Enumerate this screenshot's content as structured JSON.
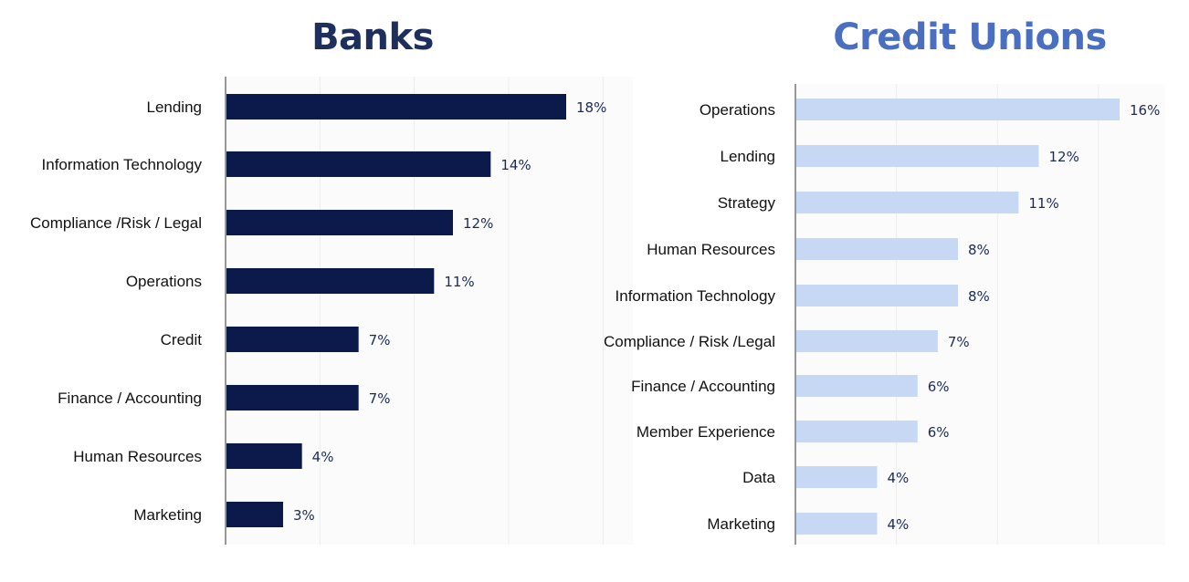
{
  "colors": {
    "banks_title": "#1d2f5c",
    "banks_bar": "#0b1a4b",
    "cu_title": "#4a6fc1",
    "cu_bar": "#c7d8f4",
    "grid": "#ececec",
    "axis": "#555555"
  },
  "chart_data": [
    {
      "type": "bar",
      "orientation": "horizontal",
      "title": "Banks",
      "xlabel": "",
      "ylabel": "",
      "xlim": [
        0,
        20
      ],
      "grid": true,
      "categories": [
        "Lending",
        "Information Technology",
        "Compliance /Risk / Legal",
        "Operations",
        "Credit",
        "Finance / Accounting",
        "Human Resources",
        "Marketing"
      ],
      "values": [
        18,
        14,
        12,
        11,
        7,
        7,
        4,
        3
      ],
      "value_labels": [
        "18%",
        "14%",
        "12%",
        "11%",
        "7%",
        "7%",
        "4%",
        "3%"
      ]
    },
    {
      "type": "bar",
      "orientation": "horizontal",
      "title": "Credit Unions",
      "xlabel": "",
      "ylabel": "",
      "xlim": [
        0,
        20
      ],
      "grid": true,
      "categories": [
        "Operations",
        "Lending",
        "Strategy",
        "Human Resources",
        "Information Technology",
        "Compliance / Risk /Legal",
        "Finance / Accounting",
        "Member Experience",
        "Data",
        "Marketing"
      ],
      "values": [
        16,
        12,
        11,
        8,
        8,
        7,
        6,
        6,
        4,
        4
      ],
      "value_labels": [
        "16%",
        "12%",
        "11%",
        "8%",
        "8%",
        "7%",
        "6%",
        "6%",
        "4%",
        "4%"
      ]
    }
  ]
}
